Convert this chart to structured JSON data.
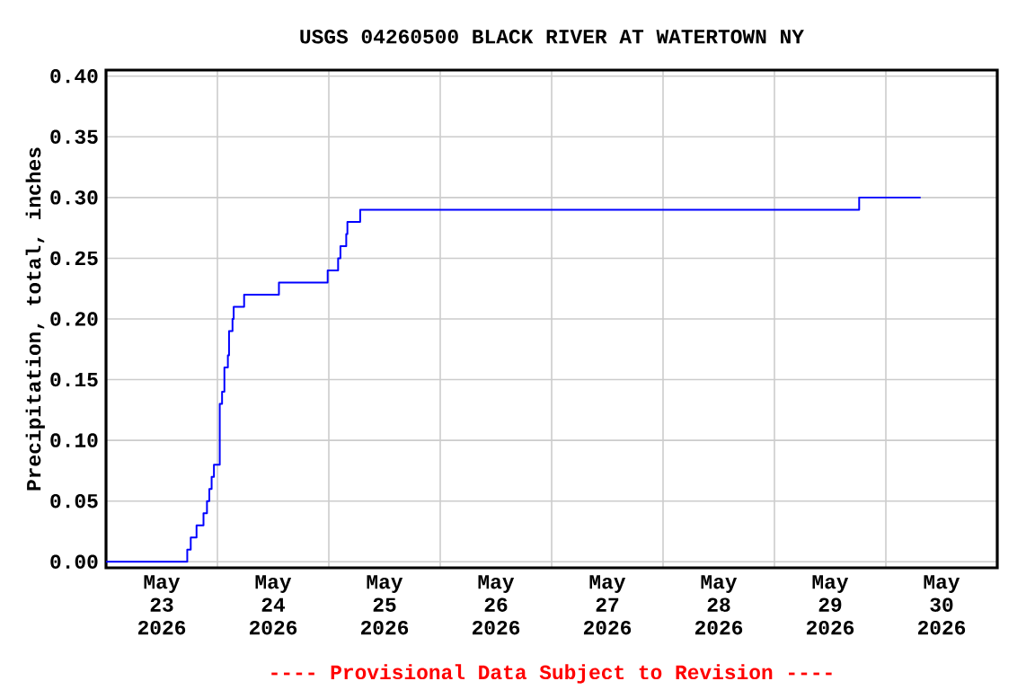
{
  "chart_data": {
    "type": "step",
    "title": "USGS 04260500 BLACK RIVER AT WATERTOWN NY",
    "ylabel": "Precipitation, total, inches",
    "annotations": [
      "---- Provisional Data Subject to Revision ----"
    ],
    "x": [
      "2026-05-23T00:00",
      "2026-05-23T17:30",
      "2026-05-23T18:15",
      "2026-05-23T19:30",
      "2026-05-23T21:00",
      "2026-05-23T21:45",
      "2026-05-23T22:15",
      "2026-05-23T22:45",
      "2026-05-23T23:15",
      "2026-05-24T00:30",
      "2026-05-24T01:00",
      "2026-05-24T01:30",
      "2026-05-24T02:15",
      "2026-05-24T02:30",
      "2026-05-24T03:15",
      "2026-05-24T03:30",
      "2026-05-24T05:45",
      "2026-05-24T13:15",
      "2026-05-24T23:45",
      "2026-05-25T02:00",
      "2026-05-25T02:30",
      "2026-05-25T03:45",
      "2026-05-25T04:00",
      "2026-05-25T06:45",
      "2026-05-29T18:15",
      "2026-05-30T07:30"
    ],
    "series": [
      {
        "color": "#0000ff",
        "values": [
          0,
          0.01,
          0.02,
          0.03,
          0.04,
          0.05,
          0.06,
          0.07,
          0.08,
          0.13,
          0.14,
          0.16,
          0.17,
          0.19,
          0.2,
          0.21,
          0.22,
          0.23,
          0.24,
          0.25,
          0.26,
          0.27,
          0.28,
          0.29,
          0.3,
          0.3
        ]
      }
    ],
    "xlim": [
      "2026-05-23T00:00",
      "2026-05-31T00:00"
    ],
    "xticks": [
      {
        "value": "2026-05-24T00:00",
        "label": null
      },
      {
        "value": "2026-05-25T00:00",
        "label": null
      },
      {
        "value": "2026-05-26T00:00",
        "label": null
      },
      {
        "value": "2026-05-27T00:00",
        "label": null
      },
      {
        "value": "2026-05-28T00:00",
        "label": null
      },
      {
        "value": "2026-05-29T00:00",
        "label": null
      },
      {
        "value": "2026-05-30T00:00",
        "label": null
      },
      {
        "value": "2026-05-23T12:00",
        "label": "May 23 2026"
      },
      {
        "value": "2026-05-24T12:00",
        "label": "May 24 2026"
      },
      {
        "value": "2026-05-25T12:00",
        "label": "May 25 2026"
      },
      {
        "value": "2026-05-26T12:00",
        "label": "May 26 2026"
      },
      {
        "value": "2026-05-27T12:00",
        "label": "May 27 2026"
      },
      {
        "value": "2026-05-28T12:00",
        "label": "May 28 2026"
      },
      {
        "value": "2026-05-29T12:00",
        "label": "May 29 2026"
      },
      {
        "value": "2026-05-30T12:00",
        "label": "May 30 2026"
      }
    ],
    "ylim": [
      -0.005,
      0.405
    ],
    "yticks": [
      {
        "value": 0,
        "label": "0.00"
      },
      {
        "value": 0.05,
        "label": "0.05"
      },
      {
        "value": 0.1,
        "label": "0.10"
      },
      {
        "value": 0.15,
        "label": "0.15"
      },
      {
        "value": 0.2,
        "label": "0.20"
      },
      {
        "value": 0.25,
        "label": "0.25"
      },
      {
        "value": 0.3,
        "label": "0.30"
      },
      {
        "value": 0.35,
        "label": "0.35"
      },
      {
        "value": 0.4,
        "label": "0.40"
      }
    ],
    "grid": true
  }
}
